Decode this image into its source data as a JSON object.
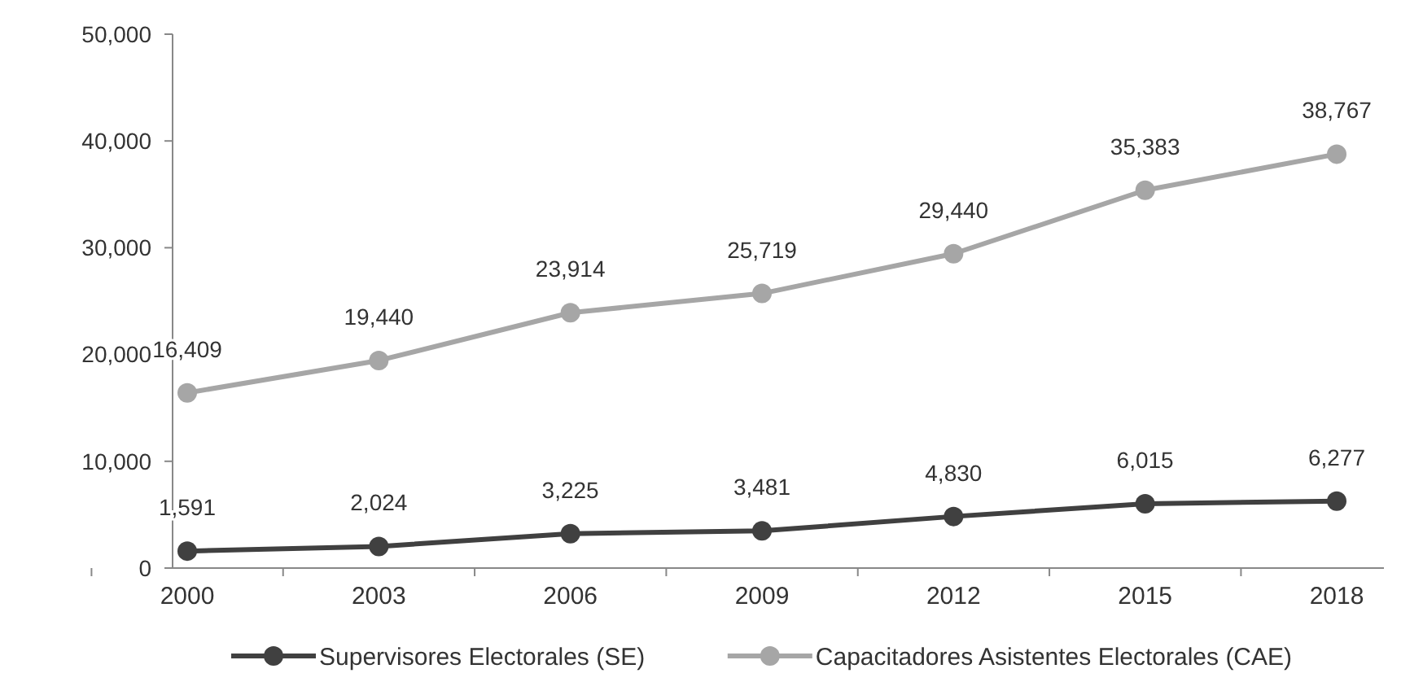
{
  "chart_data": {
    "type": "line",
    "categories": [
      "2000",
      "2003",
      "2006",
      "2009",
      "2012",
      "2015",
      "2018"
    ],
    "series": [
      {
        "name": "Supervisores Electorales (SE)",
        "color": "#404040",
        "values": [
          1591,
          2024,
          3225,
          3481,
          4830,
          6015,
          6277
        ],
        "value_labels": [
          "1,591",
          "2,024",
          "3,225",
          "3,481",
          "4,830",
          "6,015",
          "6,277"
        ]
      },
      {
        "name": "Capacitadores Asistentes Electorales (CAE)",
        "color": "#a6a6a6",
        "values": [
          16409,
          19440,
          23914,
          25719,
          29440,
          35383,
          38767
        ],
        "value_labels": [
          "16,409",
          "19,440",
          "23,914",
          "25,719",
          "29,440",
          "35,383",
          "38,767"
        ]
      }
    ],
    "ylim": [
      0,
      50000
    ],
    "yticks": [
      {
        "value": 0,
        "label": "0"
      },
      {
        "value": 10000,
        "label": "10,000"
      },
      {
        "value": 20000,
        "label": "20,000"
      },
      {
        "value": 30000,
        "label": "30,000"
      },
      {
        "value": 40000,
        "label": "40,000"
      },
      {
        "value": 50000,
        "label": "50,000"
      }
    ],
    "legend": "bottom",
    "marker": "circle",
    "line_style": "solid",
    "grid": false
  }
}
